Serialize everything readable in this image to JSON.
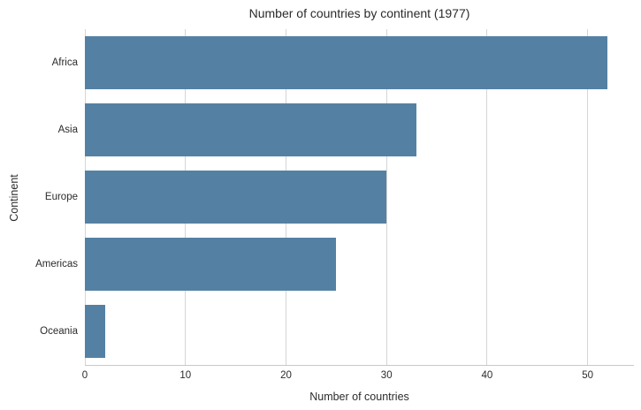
{
  "chart_data": {
    "type": "bar",
    "orientation": "horizontal",
    "title": "Number of countries by continent (1977)",
    "xlabel": "Number of countries",
    "ylabel": "Continent",
    "categories": [
      "Africa",
      "Asia",
      "Europe",
      "Americas",
      "Oceania"
    ],
    "values": [
      52,
      33,
      30,
      25,
      2
    ],
    "xlim": [
      0,
      54.6
    ],
    "xticks": [
      0,
      10,
      20,
      30,
      40,
      50
    ],
    "grid": "vertical-only",
    "legend": "none",
    "colors": {
      "bar": "#5481a3",
      "grid": "#d5d5d5",
      "spine": "#c8c8c8",
      "text": "#2b2b2b",
      "background": "#ffffff"
    }
  }
}
